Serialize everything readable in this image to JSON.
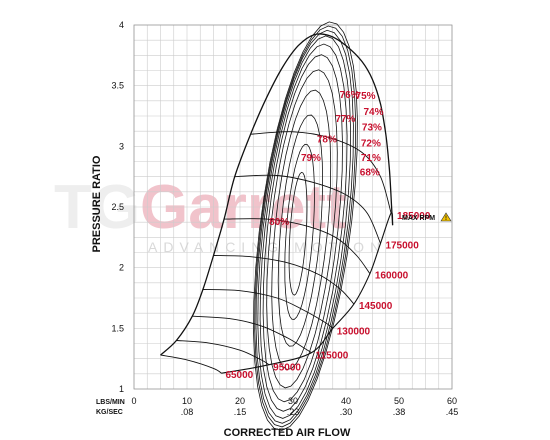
{
  "chart_data": {
    "type": "line",
    "title": "",
    "xlabel": "CORRECTED AIR FLOW",
    "ylabel": "PRESSURE RATIO",
    "x_unit_primary": "LBS/MIN",
    "x_unit_secondary": "KG/SEC",
    "xlim": [
      0,
      60
    ],
    "ylim": [
      1,
      4
    ],
    "x_ticks": [
      0,
      10,
      20,
      30,
      40,
      50,
      60
    ],
    "x_tick_labels": [
      "0",
      "10",
      "20",
      "30",
      "40",
      "50",
      "60"
    ],
    "x_secondary_tick_labels": [
      ".08",
      ".15",
      ".23",
      ".30",
      ".38",
      ".45"
    ],
    "y_ticks": [
      1,
      1.5,
      2,
      2.5,
      3,
      3.5,
      4
    ],
    "y_tick_labels": [
      "1",
      "1.5",
      "2",
      "2.5",
      "3",
      "3.5",
      "4"
    ],
    "grid": true,
    "surge_line": [
      [
        5,
        1.28
      ],
      [
        8,
        1.4
      ],
      [
        11,
        1.6
      ],
      [
        13,
        1.82
      ],
      [
        15,
        2.1
      ],
      [
        17,
        2.4
      ],
      [
        19,
        2.75
      ],
      [
        22,
        3.1
      ],
      [
        25,
        3.4
      ],
      [
        28,
        3.65
      ],
      [
        31,
        3.83
      ],
      [
        34,
        3.92
      ],
      [
        37,
        3.91
      ],
      [
        40,
        3.83
      ],
      [
        43,
        3.7
      ],
      [
        45,
        3.55
      ],
      [
        46.5,
        3.35
      ],
      [
        47.5,
        3.1
      ],
      [
        48.2,
        2.8
      ],
      [
        48.6,
        2.5
      ],
      [
        48.8,
        2.35
      ]
    ],
    "speed_lines": [
      {
        "label": "65000",
        "rpm": 65000,
        "points": [
          [
            5,
            1.28
          ],
          [
            10,
            1.24
          ],
          [
            15,
            1.17
          ],
          [
            16.5,
            1.13
          ]
        ]
      },
      {
        "label": "95000",
        "rpm": 95000,
        "points": [
          [
            8,
            1.4
          ],
          [
            14,
            1.38
          ],
          [
            20,
            1.32
          ],
          [
            24,
            1.24
          ],
          [
            25.5,
            1.2
          ]
        ]
      },
      {
        "label": "115000",
        "rpm": 115000,
        "points": [
          [
            11,
            1.6
          ],
          [
            18,
            1.58
          ],
          [
            24,
            1.52
          ],
          [
            29,
            1.42
          ],
          [
            32,
            1.34
          ],
          [
            33.5,
            1.3
          ]
        ]
      },
      {
        "label": "130000",
        "rpm": 130000,
        "points": [
          [
            13,
            1.82
          ],
          [
            20,
            1.81
          ],
          [
            27,
            1.75
          ],
          [
            32,
            1.65
          ],
          [
            36,
            1.55
          ],
          [
            37.5,
            1.5
          ]
        ]
      },
      {
        "label": "145000",
        "rpm": 145000,
        "points": [
          [
            15,
            2.1
          ],
          [
            22,
            2.09
          ],
          [
            29,
            2.04
          ],
          [
            35,
            1.94
          ],
          [
            39,
            1.82
          ],
          [
            41.5,
            1.7
          ]
        ]
      },
      {
        "label": "160000",
        "rpm": 160000,
        "points": [
          [
            17,
            2.4
          ],
          [
            25,
            2.4
          ],
          [
            32,
            2.35
          ],
          [
            38,
            2.25
          ],
          [
            42,
            2.1
          ],
          [
            44.5,
            1.95
          ]
        ]
      },
      {
        "label": "175000",
        "rpm": 175000,
        "points": [
          [
            19,
            2.75
          ],
          [
            27,
            2.76
          ],
          [
            34,
            2.7
          ],
          [
            40,
            2.6
          ],
          [
            44,
            2.45
          ],
          [
            46.5,
            2.2
          ]
        ]
      },
      {
        "label": "185000",
        "rpm": 185000,
        "points": [
          [
            22,
            3.1
          ],
          [
            30,
            3.12
          ],
          [
            37,
            3.07
          ],
          [
            43,
            2.95
          ],
          [
            46.5,
            2.75
          ],
          [
            48.5,
            2.45
          ]
        ]
      }
    ],
    "efficiency_islands": [
      {
        "label": "80%",
        "efficiency": 80
      },
      {
        "label": "79%",
        "efficiency": 79
      },
      {
        "label": "78%",
        "efficiency": 78
      },
      {
        "label": "77%",
        "efficiency": 77
      },
      {
        "label": "76%",
        "efficiency": 76
      },
      {
        "label": "75%",
        "efficiency": 75
      },
      {
        "label": "74%",
        "efficiency": 74
      },
      {
        "label": "73%",
        "efficiency": 73
      },
      {
        "label": "72%",
        "efficiency": 72
      },
      {
        "label": "71%",
        "efficiency": 71
      },
      {
        "label": "68%",
        "efficiency": 68
      }
    ],
    "max_rpm_label": "MAX RPM",
    "max_rpm_value": "185000"
  },
  "watermark": {
    "brand": "Garrett",
    "tagline": "ADVANCING MOTION",
    "colors": {
      "red": "#c8102e",
      "grey": "#d9d9d9"
    }
  },
  "colors": {
    "line": "#111111",
    "grid": "#cccccc",
    "label_red": "#c8102e",
    "warning": "#f2c200"
  }
}
